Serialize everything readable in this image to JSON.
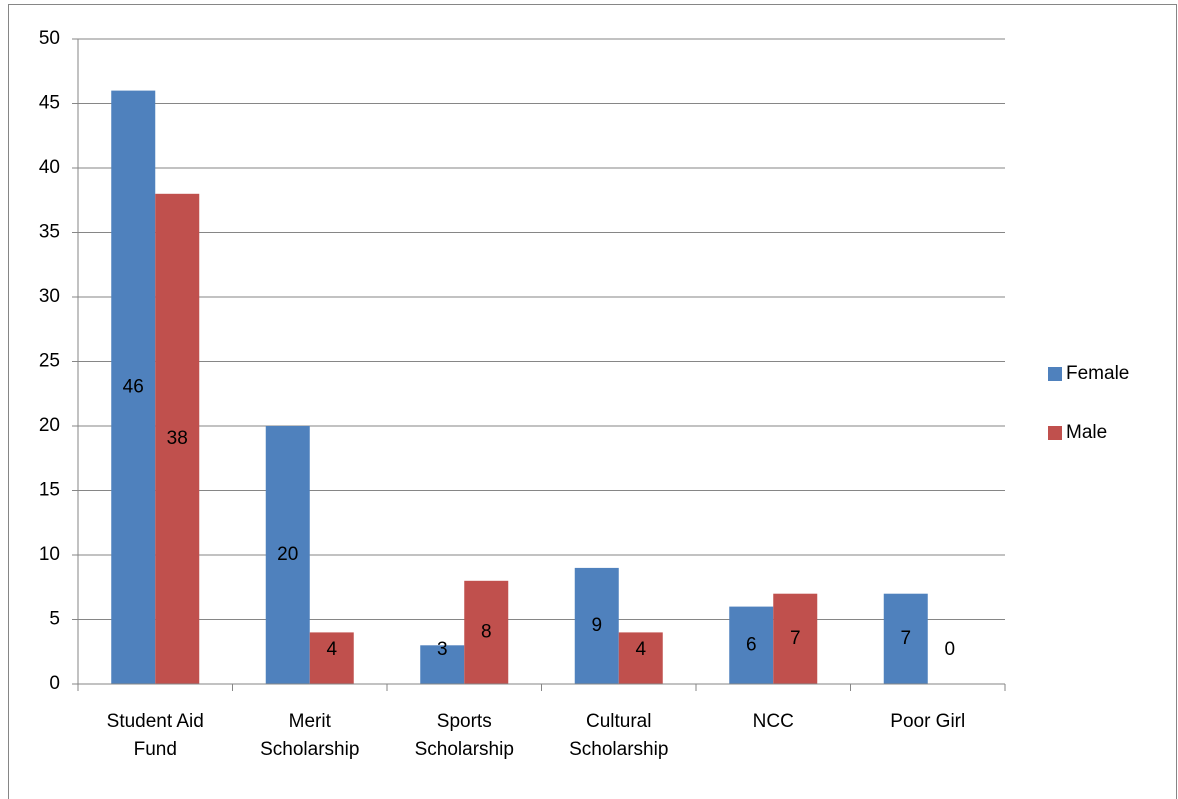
{
  "chart_data": {
    "type": "bar",
    "categories": [
      "Student Aid Fund",
      "Merit Scholarship",
      "Sports Scholarship",
      "Cultural Scholarship",
      "NCC",
      "Poor Girl"
    ],
    "series": [
      {
        "name": "Female",
        "color": "#4f81bd",
        "values": [
          46,
          20,
          3,
          9,
          6,
          7
        ]
      },
      {
        "name": "Male",
        "color": "#c0504d",
        "values": [
          38,
          4,
          8,
          4,
          7,
          0
        ]
      }
    ],
    "ylim": [
      0,
      50
    ],
    "yticks": [
      0,
      5,
      10,
      15,
      20,
      25,
      30,
      35,
      40,
      45,
      50
    ],
    "grid": true,
    "legend": "right",
    "data_labels": true
  }
}
